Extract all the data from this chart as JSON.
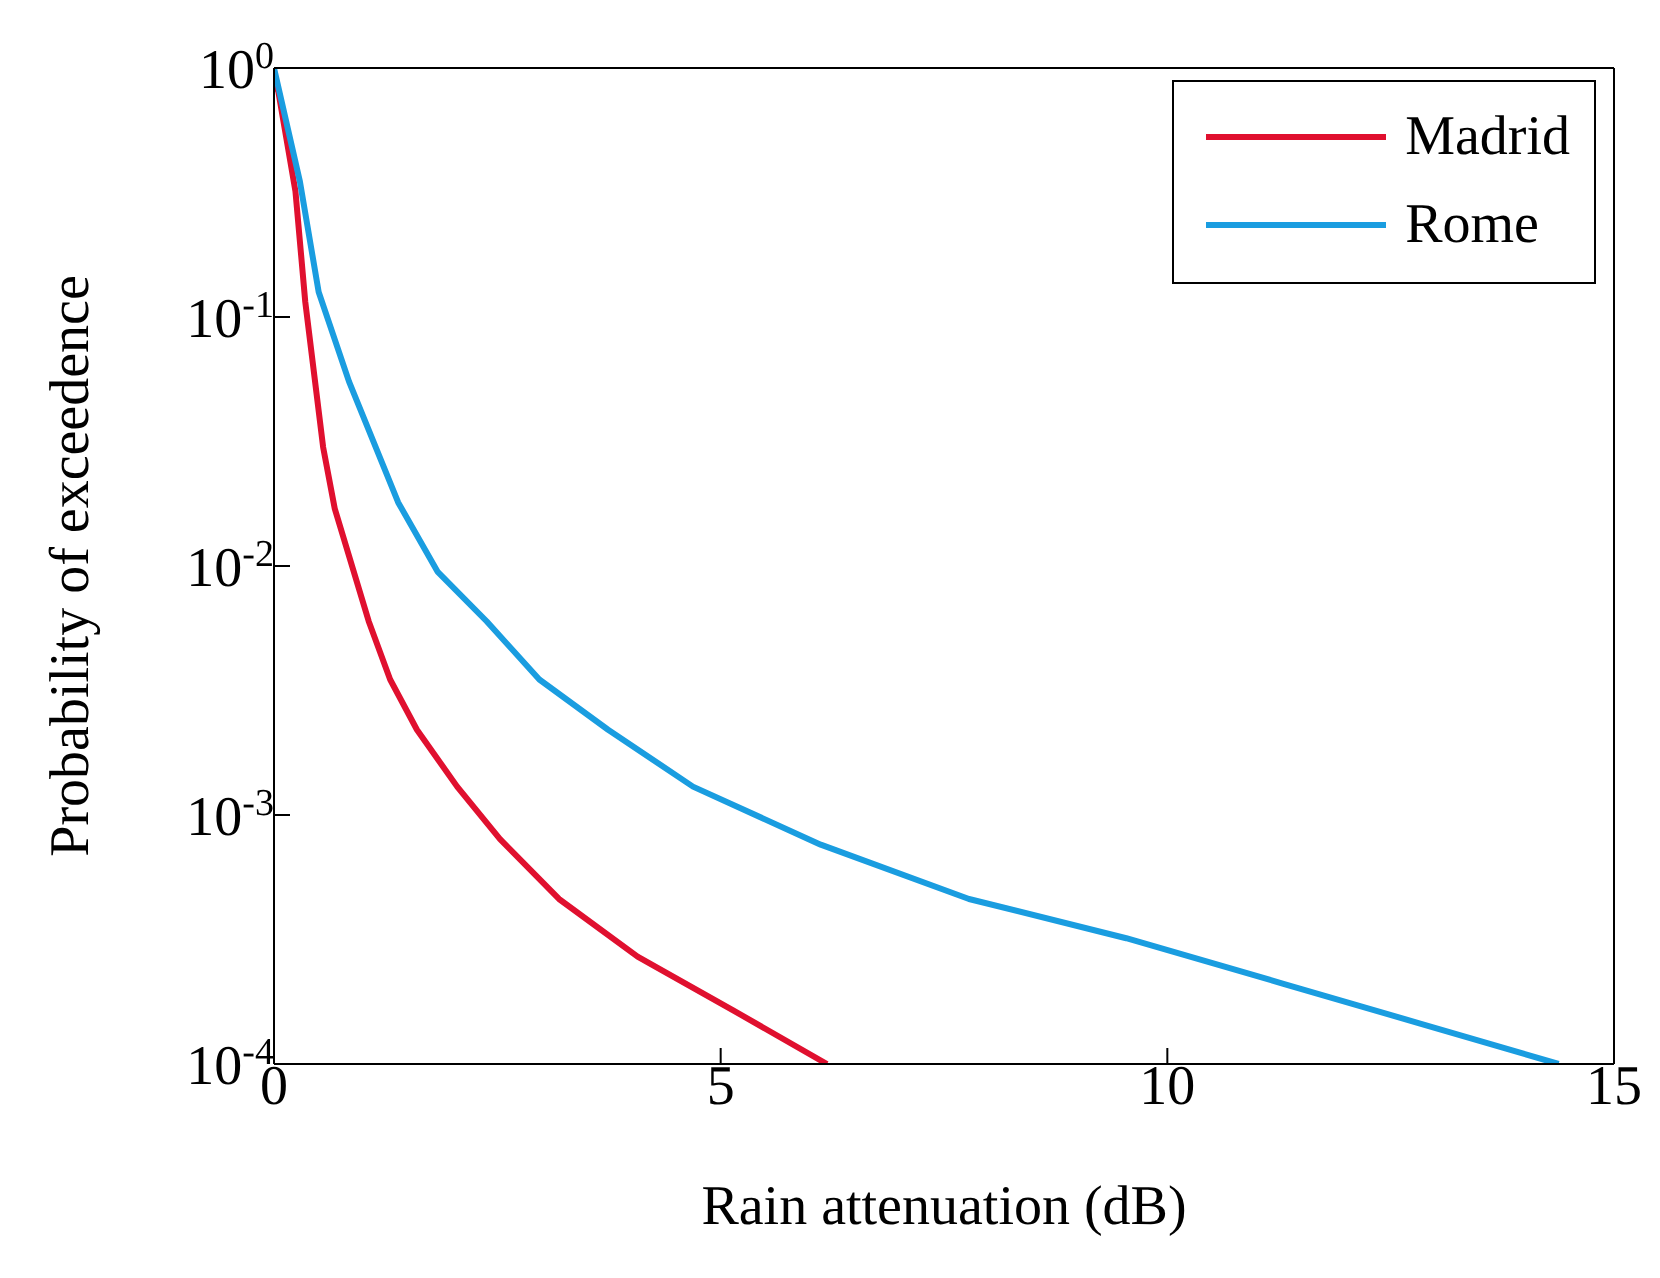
{
  "chart_data": {
    "type": "line",
    "xlabel": "Rain attenuation (dB)",
    "ylabel": "Probability of exceedence",
    "log": "y",
    "grid": false,
    "legend": "top right",
    "marker": "none",
    "line_style": "solid",
    "xlim": [
      0,
      15
    ],
    "xticks": [
      0,
      5,
      10,
      15
    ],
    "ylim": [
      0.0001,
      1
    ],
    "yticks": [
      {
        "value": 1,
        "label": "10$^{0}$"
      },
      {
        "value": 0.1,
        "label": "10$^{-1}$"
      },
      {
        "value": 0.01,
        "label": "10$^{-2}$"
      },
      {
        "value": 0.001,
        "label": "10$^{-3}$"
      },
      {
        "value": 0.0001,
        "label": "10$^{-4}$"
      }
    ],
    "series": [
      {
        "name": "Madrid",
        "color": "#e0102f",
        "x": [
          0,
          0.05,
          0.24,
          0.35,
          0.55,
          0.68,
          1.06,
          1.3,
          1.6,
          2.05,
          2.53,
          3.19,
          4.07,
          5.13,
          6.19
        ],
        "values": [
          0.9,
          0.8,
          0.32,
          0.115,
          0.03,
          0.017,
          0.006,
          0.0035,
          0.0022,
          0.0013,
          0.0008,
          0.00046,
          0.00027,
          0.000165,
          0.0001
        ]
      },
      {
        "name": "Rome",
        "color": "#1a9de0",
        "x": [
          0,
          0.29,
          0.5,
          0.84,
          1.39,
          1.83,
          2.38,
          2.97,
          3.74,
          4.69,
          6.12,
          7.78,
          9.54,
          11.3,
          12.84,
          14.38
        ],
        "values": [
          1,
          0.35,
          0.126,
          0.055,
          0.018,
          0.0095,
          0.006,
          0.0035,
          0.0022,
          0.0013,
          0.00076,
          0.00046,
          0.00032,
          0.00021,
          0.000145,
          0.0001
        ]
      }
    ]
  }
}
